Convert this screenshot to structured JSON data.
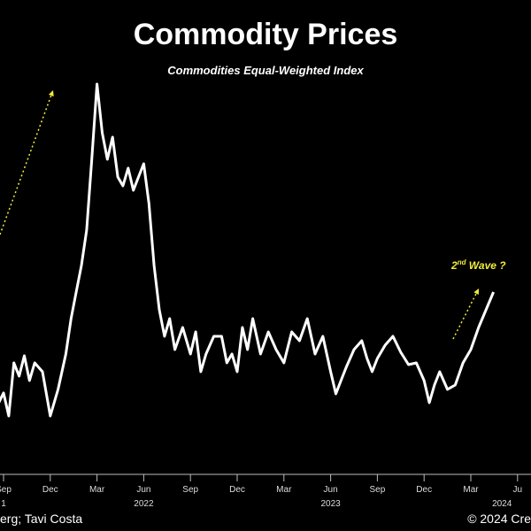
{
  "chart_data": {
    "type": "line",
    "title": "Commodity Prices",
    "subtitle": "Commodities Equal-Weighted Index",
    "xlabel": "",
    "ylabel": "",
    "grid": false,
    "x_ticks": [
      {
        "label": "Sep",
        "date": "2021-09"
      },
      {
        "label": "Dec",
        "date": "2021-12"
      },
      {
        "label": "Mar",
        "date": "2022-03"
      },
      {
        "label": "Jun",
        "date": "2022-06"
      },
      {
        "label": "Sep",
        "date": "2022-09"
      },
      {
        "label": "Dec",
        "date": "2022-12"
      },
      {
        "label": "Mar",
        "date": "2023-03"
      },
      {
        "label": "Jun",
        "date": "2023-06"
      },
      {
        "label": "Sep",
        "date": "2023-09"
      },
      {
        "label": "Dec",
        "date": "2023-12"
      },
      {
        "label": "Mar",
        "date": "2024-03"
      },
      {
        "label": "Ju",
        "date": "2024-06"
      }
    ],
    "year_labels": [
      {
        "label": "1",
        "date": "2021-09"
      },
      {
        "label": "2022",
        "date": "2022-06"
      },
      {
        "label": "2023",
        "date": "2023-06"
      },
      {
        "label": "2024",
        "date": "2024-05"
      }
    ],
    "series": [
      {
        "values": [
          [
            "2021-08",
            450
          ],
          [
            "2021-08",
            462
          ],
          [
            "2021-09",
            444
          ],
          [
            "2021-09",
            470
          ],
          [
            "2021-09",
            410
          ],
          [
            "2021-10",
            425
          ],
          [
            "2021-10",
            402
          ],
          [
            "2021-10",
            430
          ],
          [
            "2021-11",
            410
          ],
          [
            "2021-11",
            420
          ],
          [
            "2021-12",
            470
          ],
          [
            "2021-12",
            440
          ],
          [
            "2022-01",
            400
          ],
          [
            "2022-01",
            360
          ],
          [
            "2022-01",
            330
          ],
          [
            "2022-02",
            300
          ],
          [
            "2022-02",
            260
          ],
          [
            "2022-02",
            180
          ],
          [
            "2022-03",
            95
          ],
          [
            "2022-03",
            150
          ],
          [
            "2022-03",
            180
          ],
          [
            "2022-04",
            155
          ],
          [
            "2022-04",
            200
          ],
          [
            "2022-04",
            210
          ],
          [
            "2022-05",
            190
          ],
          [
            "2022-05",
            215
          ],
          [
            "2022-05",
            200
          ],
          [
            "2022-06",
            185
          ],
          [
            "2022-06",
            230
          ],
          [
            "2022-06",
            300
          ],
          [
            "2022-07",
            350
          ],
          [
            "2022-07",
            380
          ],
          [
            "2022-07",
            360
          ],
          [
            "2022-08",
            395
          ],
          [
            "2022-08",
            370
          ],
          [
            "2022-09",
            400
          ],
          [
            "2022-09",
            375
          ],
          [
            "2022-09",
            420
          ],
          [
            "2022-10",
            400
          ],
          [
            "2022-10",
            380
          ],
          [
            "2022-11",
            380
          ],
          [
            "2022-11",
            410
          ],
          [
            "2022-11",
            400
          ],
          [
            "2022-12",
            420
          ],
          [
            "2022-12",
            370
          ],
          [
            "2022-12",
            395
          ],
          [
            "2023-01",
            360
          ],
          [
            "2023-01",
            400
          ],
          [
            "2023-02",
            375
          ],
          [
            "2023-02",
            395
          ],
          [
            "2023-03",
            410
          ],
          [
            "2023-03",
            375
          ],
          [
            "2023-04",
            385
          ],
          [
            "2023-04",
            360
          ],
          [
            "2023-05",
            400
          ],
          [
            "2023-05",
            380
          ],
          [
            "2023-06",
            420
          ],
          [
            "2023-06",
            445
          ],
          [
            "2023-06",
            430
          ],
          [
            "2023-07",
            415
          ],
          [
            "2023-07",
            395
          ],
          [
            "2023-08",
            385
          ],
          [
            "2023-08",
            405
          ],
          [
            "2023-08",
            420
          ],
          [
            "2023-09",
            405
          ],
          [
            "2023-09",
            390
          ],
          [
            "2023-10",
            380
          ],
          [
            "2023-10",
            398
          ],
          [
            "2023-11",
            412
          ],
          [
            "2023-11",
            410
          ],
          [
            "2023-12",
            430
          ],
          [
            "2023-12",
            455
          ],
          [
            "2023-12",
            435
          ],
          [
            "2024-01",
            420
          ],
          [
            "2024-01",
            440
          ],
          [
            "2024-02",
            435
          ],
          [
            "2024-02",
            410
          ],
          [
            "2024-03",
            395
          ],
          [
            "2024-03",
            370
          ],
          [
            "2024-04",
            330
          ]
        ]
      }
    ],
    "annotations": {
      "second_wave": "2nd Wave ?",
      "second_wave_base": "2",
      "second_wave_sup": "nd",
      "second_wave_rest": " Wave ?"
    }
  },
  "footer": {
    "source": "erg; Tavi Costa",
    "copyright": "© 2024 Cre"
  },
  "colors": {
    "background": "#000000",
    "line": "#ffffff",
    "annotation": "#f2ec3c"
  }
}
